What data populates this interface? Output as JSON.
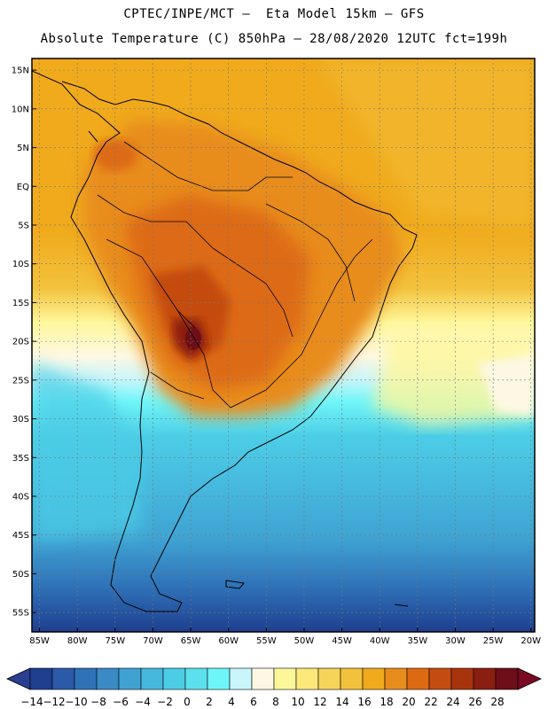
{
  "header": {
    "line1": "CPTEC/INPE/MCT –  Eta Model 15km – GFS",
    "line2": "Absolute Temperature (C) 850hPa – 28/08/2020 12UTC fct=199h"
  },
  "map": {
    "lat_labels": [
      "15N",
      "10N",
      "5N",
      "EQ",
      "5S",
      "10S",
      "15S",
      "20S",
      "25S",
      "30S",
      "35S",
      "40S",
      "45S",
      "50S",
      "55S"
    ],
    "lon_labels": [
      "85W",
      "80W",
      "75W",
      "70W",
      "65W",
      "60W",
      "55W",
      "50W",
      "45W",
      "40W",
      "35W",
      "30W",
      "25W",
      "20W"
    ],
    "lat_values": [
      15,
      10,
      5,
      0,
      -5,
      -10,
      -15,
      -20,
      -25,
      -30,
      -35,
      -40,
      -45,
      -50,
      -55
    ],
    "lon_values": [
      -85,
      -80,
      -75,
      -70,
      -65,
      -60,
      -55,
      -50,
      -45,
      -40,
      -35,
      -30,
      -25,
      -20
    ],
    "extent": {
      "lon_min": -86,
      "lon_max": -19.5,
      "lat_min": -57.5,
      "lat_max": 16.5
    }
  },
  "colorbar": {
    "labels": [
      "-14",
      "-12",
      "-10",
      "-8",
      "-6",
      "-4",
      "-2",
      "0",
      "2",
      "4",
      "6",
      "8",
      "10",
      "12",
      "14",
      "16",
      "18",
      "20",
      "22",
      "24",
      "26",
      "28"
    ],
    "colors": [
      "#1f3f8f",
      "#2a5aa8",
      "#2f72b8",
      "#3a8ac6",
      "#3fa2d2",
      "#46b8de",
      "#4ccde6",
      "#5ce0ee",
      "#6ef5f8",
      "#c8f6fb",
      "#fdf8e4",
      "#fef79a",
      "#fde87a",
      "#f6d45a",
      "#f3c23c",
      "#f0aa1c",
      "#e88c1c",
      "#dd6a12",
      "#c44c10",
      "#a8340e",
      "#8a1e10",
      "#6e0e18"
    ],
    "under_color": "#2a3f90",
    "over_color": "#7a0a22"
  }
}
